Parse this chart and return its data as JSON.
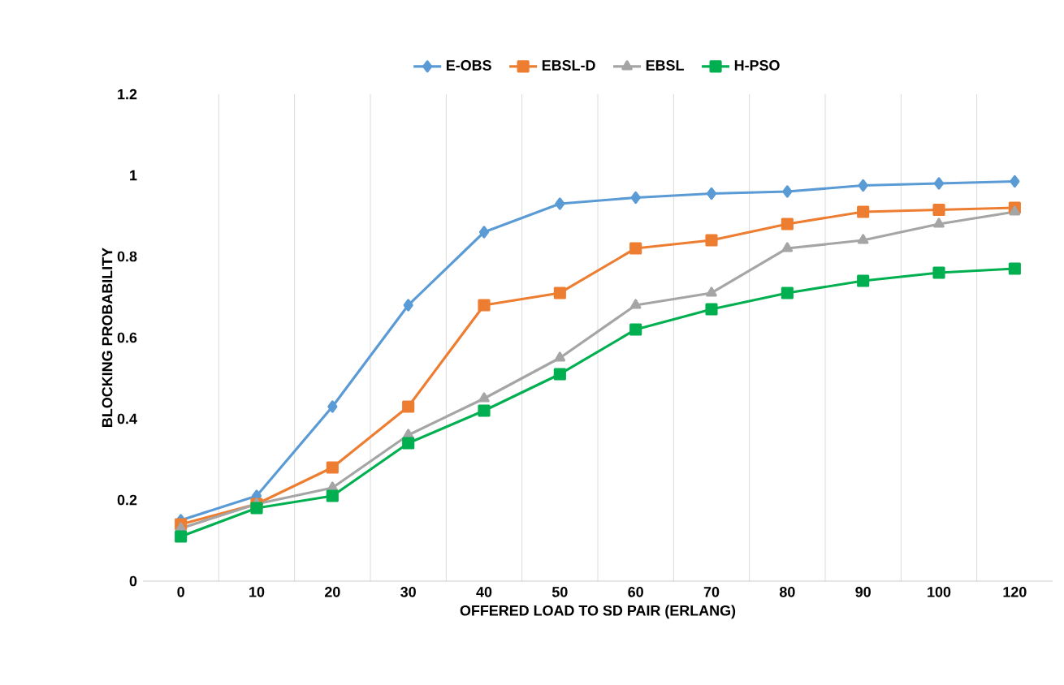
{
  "chart_data": {
    "type": "line",
    "xlabel": "OFFERED LOAD TO SD PAIR (ERLANG)",
    "ylabel": "BLOCKING PROBABILITY",
    "categories": [
      "0",
      "10",
      "20",
      "30",
      "40",
      "50",
      "60",
      "70",
      "80",
      "90",
      "100",
      "120"
    ],
    "ylim": [
      0,
      1.2
    ],
    "yticks": [
      0,
      0.2,
      0.4,
      0.6,
      0.8,
      1,
      1.2
    ],
    "grid": "x",
    "legend": "top",
    "line_style": "solid",
    "series": [
      {
        "name": "E-OBS",
        "color": "#5b9bd5",
        "marker": "diamond",
        "values": [
          0.15,
          0.21,
          0.43,
          0.68,
          0.86,
          0.93,
          0.945,
          0.955,
          0.96,
          0.975,
          0.98,
          0.985
        ]
      },
      {
        "name": "EBSL-D",
        "color": "#ed7d31",
        "marker": "square",
        "values": [
          0.14,
          0.19,
          0.28,
          0.43,
          0.68,
          0.71,
          0.82,
          0.84,
          0.88,
          0.91,
          0.915,
          0.92
        ]
      },
      {
        "name": "EBSL",
        "color": "#a5a5a5",
        "marker": "triangle",
        "values": [
          0.13,
          0.19,
          0.23,
          0.36,
          0.45,
          0.55,
          0.68,
          0.71,
          0.82,
          0.84,
          0.88,
          0.91
        ]
      },
      {
        "name": "H-PSO",
        "color": "#00b050",
        "marker": "square",
        "values": [
          0.11,
          0.18,
          0.21,
          0.34,
          0.42,
          0.51,
          0.62,
          0.67,
          0.71,
          0.74,
          0.76,
          0.77
        ]
      }
    ]
  }
}
